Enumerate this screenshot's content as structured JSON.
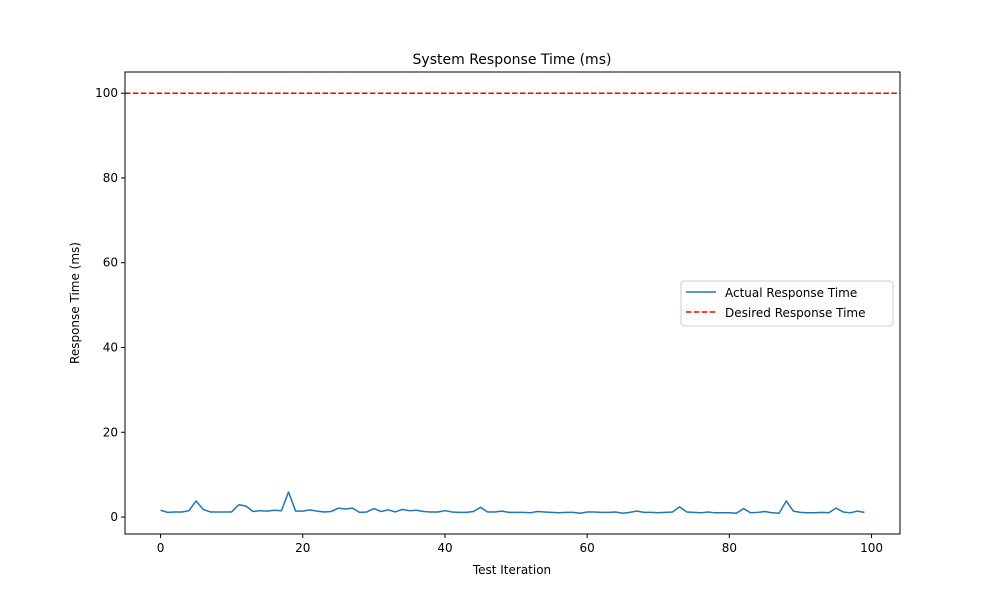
{
  "chart_data": {
    "type": "line",
    "title": "System Response Time (ms)",
    "xlabel": "Test Iteration",
    "ylabel": "Response Time (ms)",
    "xlim": [
      -5,
      104
    ],
    "ylim": [
      -4,
      105
    ],
    "xticks": [
      0,
      20,
      40,
      60,
      80,
      100
    ],
    "yticks": [
      0,
      20,
      40,
      60,
      80,
      100
    ],
    "grid": false,
    "legend_position": "center-right",
    "series": [
      {
        "name": "Actual Response Time",
        "style": "solid",
        "color": "#1f77b4",
        "x": [
          0,
          1,
          2,
          3,
          4,
          5,
          6,
          7,
          8,
          9,
          10,
          11,
          12,
          13,
          14,
          15,
          16,
          17,
          18,
          19,
          20,
          21,
          22,
          23,
          24,
          25,
          26,
          27,
          28,
          29,
          30,
          31,
          32,
          33,
          34,
          35,
          36,
          37,
          38,
          39,
          40,
          41,
          42,
          43,
          44,
          45,
          46,
          47,
          48,
          49,
          50,
          51,
          52,
          53,
          54,
          55,
          56,
          57,
          58,
          59,
          60,
          61,
          62,
          63,
          64,
          65,
          66,
          67,
          68,
          69,
          70,
          71,
          72,
          73,
          74,
          75,
          76,
          77,
          78,
          79,
          80,
          81,
          82,
          83,
          84,
          85,
          86,
          87,
          88,
          89,
          90,
          91,
          92,
          93,
          94,
          95,
          96,
          97,
          98,
          99
        ],
        "y": [
          1.6,
          1.1,
          1.2,
          1.2,
          1.5,
          3.8,
          1.8,
          1.2,
          1.2,
          1.2,
          1.2,
          2.9,
          2.6,
          1.3,
          1.5,
          1.4,
          1.6,
          1.5,
          5.9,
          1.4,
          1.4,
          1.7,
          1.4,
          1.2,
          1.3,
          2.1,
          1.9,
          2.1,
          1.1,
          1.2,
          2.0,
          1.3,
          1.7,
          1.2,
          1.8,
          1.5,
          1.6,
          1.3,
          1.2,
          1.2,
          1.5,
          1.2,
          1.1,
          1.1,
          1.3,
          2.3,
          1.2,
          1.2,
          1.4,
          1.1,
          1.1,
          1.1,
          1.0,
          1.3,
          1.2,
          1.1,
          1.0,
          1.1,
          1.1,
          0.9,
          1.2,
          1.2,
          1.1,
          1.1,
          1.2,
          0.9,
          1.1,
          1.4,
          1.1,
          1.1,
          1.0,
          1.1,
          1.2,
          2.4,
          1.2,
          1.1,
          1.0,
          1.2,
          1.0,
          1.0,
          1.0,
          0.9,
          2.0,
          1.0,
          1.1,
          1.3,
          1.0,
          0.9,
          3.8,
          1.4,
          1.1,
          1.0,
          1.0,
          1.1,
          1.0,
          2.1,
          1.2,
          1.0,
          1.4,
          1.1
        ]
      },
      {
        "name": "Desired Response Time",
        "style": "dashed",
        "color": "#ff0000",
        "constant": 100
      }
    ]
  }
}
